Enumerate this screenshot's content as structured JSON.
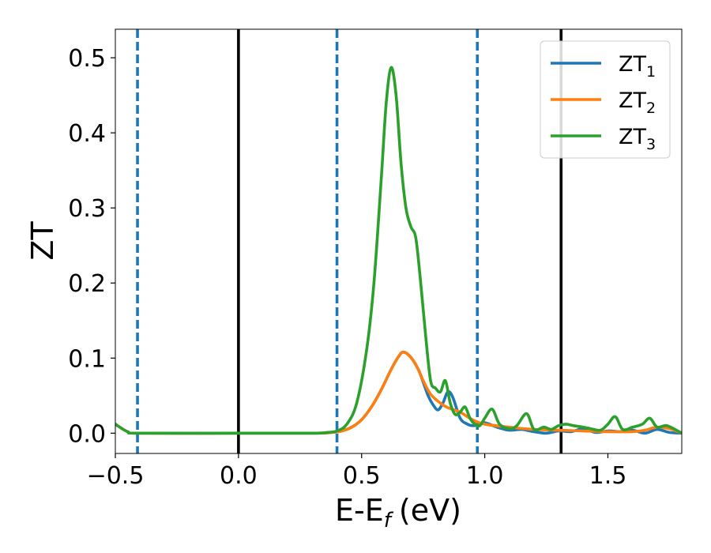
{
  "chart_data": {
    "type": "line",
    "xlabel": "E-E",
    "xlabel_sub": "f",
    "xlabel_unit": "(eV)",
    "ylabel": "ZT",
    "xlim": [
      -0.5,
      1.8
    ],
    "ylim": [
      -0.027,
      0.538
    ],
    "xticks": [
      -0.5,
      0.0,
      0.5,
      1.0,
      1.5
    ],
    "xtick_labels": [
      "−0.5",
      "0.0",
      "0.5",
      "1.0",
      "1.5"
    ],
    "yticks": [
      0.0,
      0.1,
      0.2,
      0.3,
      0.4,
      0.5
    ],
    "ytick_labels": [
      "0.0",
      "0.1",
      "0.2",
      "0.3",
      "0.4",
      "0.5"
    ],
    "grid": false,
    "legend_position": "top-right",
    "vlines": [
      {
        "x": 0.0,
        "style": "solid",
        "color": "#000000"
      },
      {
        "x": 1.31,
        "style": "solid",
        "color": "#000000"
      },
      {
        "x": -0.41,
        "style": "dashed",
        "color": "#1f77b4"
      },
      {
        "x": 0.4,
        "style": "dashed",
        "color": "#1f77b4"
      },
      {
        "x": 0.97,
        "style": "dashed",
        "color": "#1f77b4"
      }
    ],
    "series": [
      {
        "name": "ZT",
        "sub": "1",
        "color": "#1f77b4",
        "x": [
          -0.5,
          -0.45,
          -0.4,
          0.0,
          0.3,
          0.38,
          0.42,
          0.46,
          0.5,
          0.54,
          0.58,
          0.62,
          0.65,
          0.67,
          0.7,
          0.73,
          0.75,
          0.77,
          0.79,
          0.81,
          0.83,
          0.85,
          0.87,
          0.9,
          0.93,
          0.95,
          0.97,
          1.0,
          1.05,
          1.1,
          1.15,
          1.2,
          1.25,
          1.3,
          1.35,
          1.4,
          1.45,
          1.5,
          1.55,
          1.6,
          1.65,
          1.7,
          1.75,
          1.8
        ],
        "y": [
          0.012,
          0.002,
          0.0,
          0.0,
          0.0,
          0.001,
          0.003,
          0.008,
          0.018,
          0.035,
          0.058,
          0.085,
          0.102,
          0.108,
          0.101,
          0.085,
          0.068,
          0.05,
          0.038,
          0.031,
          0.04,
          0.055,
          0.048,
          0.02,
          0.012,
          0.01,
          0.011,
          0.014,
          0.008,
          0.004,
          0.005,
          0.002,
          0.0,
          0.003,
          0.002,
          0.006,
          0.001,
          0.003,
          0.002,
          0.004,
          0.0,
          0.005,
          0.001,
          0.0
        ]
      },
      {
        "name": "ZT",
        "sub": "2",
        "color": "#ff7f0e",
        "x": [
          -0.5,
          -0.45,
          -0.4,
          0.0,
          0.3,
          0.38,
          0.42,
          0.46,
          0.5,
          0.54,
          0.58,
          0.62,
          0.65,
          0.67,
          0.7,
          0.73,
          0.75,
          0.78,
          0.82,
          0.85,
          0.9,
          0.95,
          1.0,
          1.1,
          1.2,
          1.3,
          1.4,
          1.5,
          1.6,
          1.65,
          1.7,
          1.75,
          1.8
        ],
        "y": [
          0.012,
          0.002,
          0.0,
          0.0,
          0.0,
          0.001,
          0.003,
          0.008,
          0.018,
          0.035,
          0.058,
          0.085,
          0.102,
          0.108,
          0.101,
          0.085,
          0.07,
          0.052,
          0.04,
          0.034,
          0.028,
          0.018,
          0.012,
          0.008,
          0.005,
          0.004,
          0.003,
          0.002,
          0.002,
          0.004,
          0.008,
          0.006,
          0.0
        ]
      },
      {
        "name": "ZT",
        "sub": "3",
        "color": "#2ca02c",
        "x": [
          -0.5,
          -0.45,
          -0.4,
          0.0,
          0.3,
          0.36,
          0.4,
          0.44,
          0.48,
          0.52,
          0.55,
          0.58,
          0.6,
          0.62,
          0.64,
          0.66,
          0.68,
          0.7,
          0.72,
          0.74,
          0.76,
          0.78,
          0.8,
          0.82,
          0.84,
          0.86,
          0.88,
          0.9,
          0.92,
          0.94,
          0.96,
          0.98,
          1.0,
          1.03,
          1.06,
          1.1,
          1.13,
          1.17,
          1.2,
          1.24,
          1.27,
          1.3,
          1.33,
          1.36,
          1.4,
          1.43,
          1.47,
          1.5,
          1.53,
          1.56,
          1.6,
          1.64,
          1.67,
          1.7,
          1.74,
          1.8
        ],
        "y": [
          0.012,
          0.002,
          0.0,
          0.0,
          0.0,
          0.001,
          0.003,
          0.012,
          0.04,
          0.11,
          0.2,
          0.34,
          0.44,
          0.487,
          0.45,
          0.36,
          0.3,
          0.275,
          0.26,
          0.2,
          0.13,
          0.07,
          0.06,
          0.055,
          0.07,
          0.04,
          0.025,
          0.028,
          0.035,
          0.02,
          0.012,
          0.01,
          0.02,
          0.032,
          0.012,
          0.006,
          0.01,
          0.026,
          0.005,
          0.008,
          0.005,
          0.01,
          0.012,
          0.01,
          0.008,
          0.006,
          0.004,
          0.012,
          0.022,
          0.005,
          0.008,
          0.012,
          0.02,
          0.008,
          0.01,
          0.0
        ]
      }
    ]
  }
}
